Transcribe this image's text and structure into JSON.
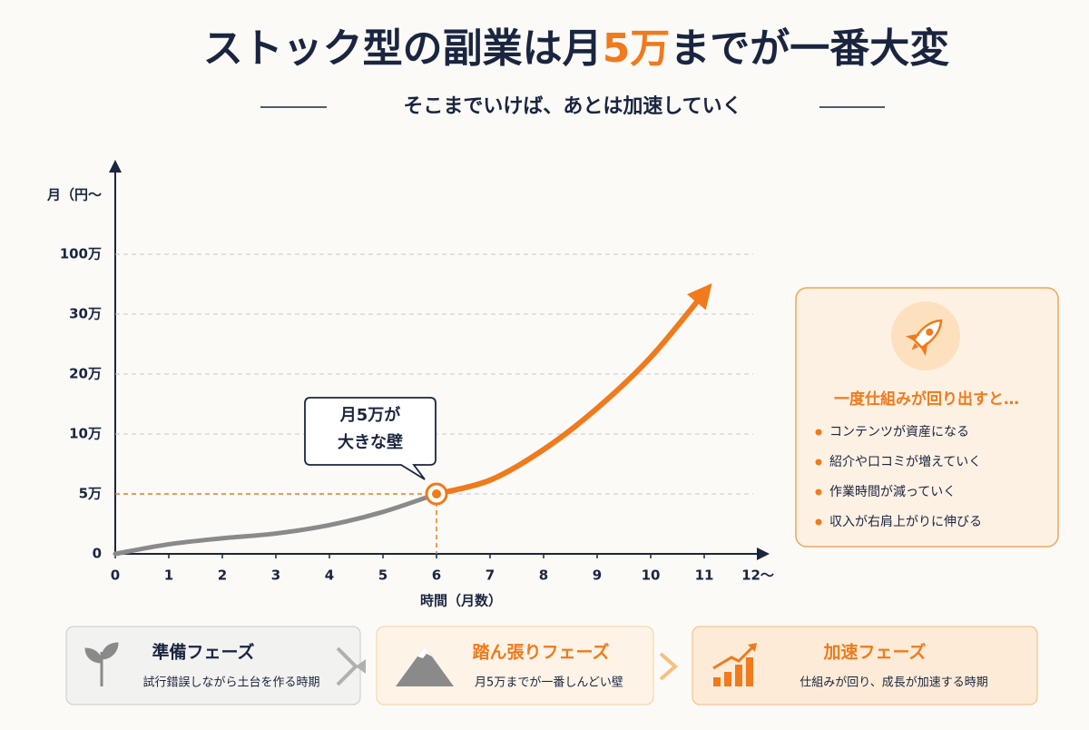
{
  "header": {
    "title": [
      "ストック型の副業は月",
      "5万",
      "までが一番大変"
    ],
    "subtitle": "そこまでいけば、あとは加速していく"
  },
  "chart_data": {
    "type": "line",
    "y_label": "月（円～",
    "x_label": "時間（月数）",
    "x": [
      0,
      1,
      2,
      3,
      4,
      5,
      6,
      7,
      8,
      9,
      10,
      11
    ],
    "series": [
      {
        "color": "#8a8a8a",
        "values": [
          0,
          8000,
          13000,
          17000,
          24000,
          35000,
          50000,
          null,
          null,
          null,
          null,
          null
        ]
      },
      {
        "color": "#f07a1c",
        "values": [
          null,
          null,
          null,
          null,
          null,
          null,
          50000,
          61500,
          87000,
          143000,
          228000,
          550000
        ]
      }
    ],
    "xlim": [
      0,
      12
    ],
    "xticks": [
      0,
      1,
      2,
      3,
      4,
      5,
      6,
      7,
      8,
      9,
      10,
      11,
      {
        "value": 12,
        "label": "12～"
      }
    ],
    "ylim": [
      0,
      1500000
    ],
    "yscale": "piecewise",
    "yticks": [
      0,
      {
        "value": 50000,
        "label": "5万"
      },
      {
        "value": 100000,
        "label": "10万"
      },
      {
        "value": 200000,
        "label": "20万"
      },
      {
        "value": 300000,
        "label": "30万"
      },
      {
        "value": 1000000,
        "label": "100万"
      }
    ],
    "grid": true,
    "annotation": [
      "月5万が",
      "大きな壁"
    ]
  },
  "panel": {
    "title": "一度仕組みが回り出すと…",
    "items": [
      "コンテンツが資産になる",
      "紹介や口コミが増えていく",
      "作業時間が減っていく",
      "収入が右肩上がりに伸びる"
    ]
  },
  "phases": [
    {
      "title": "準備フェーズ",
      "description": "試行錯誤しながら土台を作る時期"
    },
    {
      "title": "踏ん張りフェーズ",
      "description": "月5万までが一番しんどい壁"
    },
    {
      "title": "加速フェーズ",
      "description": "仕組みが回り、成長が加速する時期"
    }
  ]
}
